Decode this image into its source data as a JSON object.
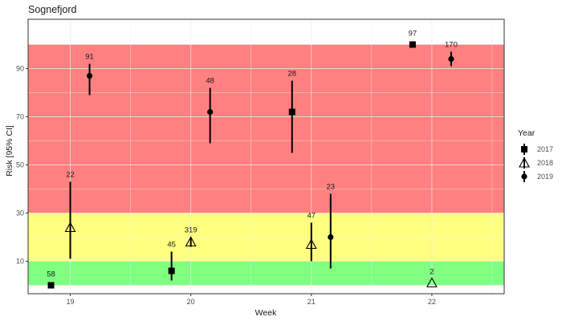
{
  "chart_data": {
    "type": "scatter",
    "title": "Sognefjord",
    "xlabel": "Week",
    "ylabel": "Risk [95% CI]",
    "xlim": [
      18.65,
      22.6
    ],
    "ylim": [
      -3.5,
      110.5
    ],
    "x_ticks": [
      19,
      20,
      21,
      22
    ],
    "y_ticks": [
      10,
      30,
      50,
      70,
      90
    ],
    "grid": true,
    "legend_position": "right",
    "legend_title": "Year",
    "bands": [
      {
        "from": 0,
        "to": 10,
        "color": "#80FF80"
      },
      {
        "from": 10,
        "to": 30,
        "color": "#FFFF80"
      },
      {
        "from": 30,
        "to": 100,
        "color": "#FF8080"
      }
    ],
    "series": [
      {
        "name": "2017",
        "shape": "square",
        "points": [
          {
            "x": 18.84,
            "y": 0,
            "lo": 0,
            "hi": 0,
            "label": "58"
          },
          {
            "x": 19.84,
            "y": 6,
            "lo": 2,
            "hi": 14,
            "label": "45"
          },
          {
            "x": 20.84,
            "y": 72,
            "lo": 55,
            "hi": 85,
            "label": "28"
          },
          {
            "x": 21.84,
            "y": 100,
            "lo": 100,
            "hi": 100,
            "label": "97"
          }
        ]
      },
      {
        "name": "2018",
        "shape": "triangle",
        "points": [
          {
            "x": 19.0,
            "y": 24,
            "lo": 11,
            "hi": 43,
            "label": "22"
          },
          {
            "x": 20.0,
            "y": 18,
            "lo": 16,
            "hi": 20,
            "label": "319"
          },
          {
            "x": 21.0,
            "y": 17,
            "lo": 10,
            "hi": 26,
            "label": "47"
          },
          {
            "x": 22.0,
            "y": 1,
            "lo": 1,
            "hi": 1,
            "label": "2"
          }
        ]
      },
      {
        "name": "2019",
        "shape": "circle",
        "points": [
          {
            "x": 19.16,
            "y": 87,
            "lo": 79,
            "hi": 92,
            "label": "91"
          },
          {
            "x": 20.16,
            "y": 72,
            "lo": 59,
            "hi": 82,
            "label": "48"
          },
          {
            "x": 21.16,
            "y": 20,
            "lo": 7,
            "hi": 38,
            "label": "23"
          },
          {
            "x": 22.16,
            "y": 94,
            "lo": 91,
            "hi": 97,
            "label": "170"
          }
        ]
      }
    ]
  }
}
